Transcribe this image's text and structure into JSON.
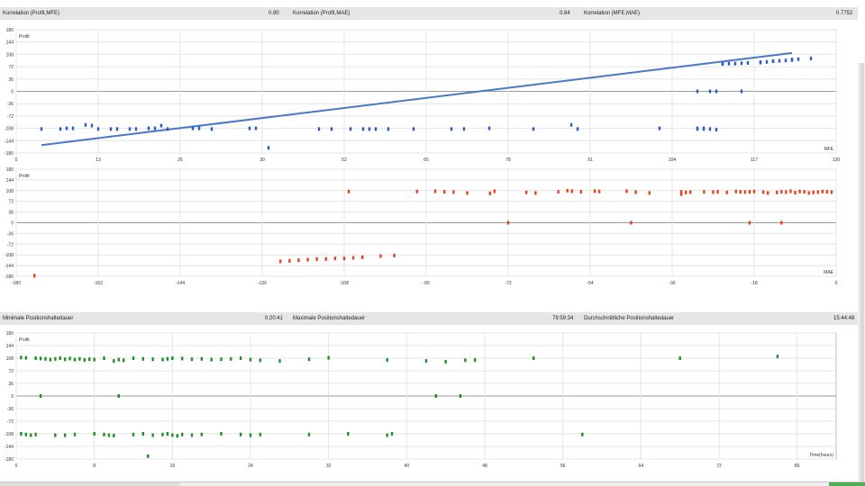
{
  "stats_top": {
    "items": [
      {
        "label": "Korrelation (Profit,MFE)",
        "value": "0.90"
      },
      {
        "label": "Korrelation (Profit,MAE)",
        "value": "0.84"
      },
      {
        "label": "Korrelation (MFE,MAE)",
        "value": "0.7752"
      }
    ]
  },
  "stats_mid": {
    "items": [
      {
        "label": "Minimale Positionshaltedauer",
        "value": "0:20:41"
      },
      {
        "label": "Maximale Positionshaltedauer",
        "value": "79:59:34"
      },
      {
        "label": "Durchschnittliche Positionshaltedauer",
        "value": "15:44:48"
      }
    ]
  },
  "chart_data": [
    {
      "type": "scatter",
      "title": "",
      "xlabel": "MFE",
      "ylabel": "Profit",
      "xlim": [
        0,
        130
      ],
      "ylim": [
        -180,
        180
      ],
      "xticks": [
        0,
        13,
        26,
        39,
        52,
        65,
        78,
        91,
        104,
        117,
        130
      ],
      "yticks": [
        -180,
        -144,
        -108,
        -72,
        -36,
        0,
        36,
        72,
        108,
        144,
        180
      ],
      "grid": true,
      "trendline": {
        "x": [
          4,
          123
        ],
        "y": [
          -157,
          112
        ]
      },
      "series": [
        {
          "color": "#2a5cc8",
          "x": [
            4,
            7,
            8,
            9,
            11,
            12,
            13,
            15,
            16,
            18,
            19,
            21,
            22,
            23,
            24,
            28,
            29,
            31,
            37,
            38,
            40,
            48,
            50,
            53,
            55,
            56,
            57,
            59,
            63,
            69,
            71,
            75,
            82,
            88,
            89,
            102,
            108,
            108,
            109,
            109,
            110,
            111,
            112,
            112,
            113,
            114,
            115,
            116,
            118,
            118,
            119,
            120,
            120,
            121,
            122,
            123,
            123,
            124,
            108,
            110,
            111,
            115,
            126
          ],
          "y": [
            -110,
            -110,
            -108,
            -108,
            -98,
            -100,
            -110,
            -110,
            -110,
            -110,
            -110,
            -108,
            -108,
            -100,
            -110,
            -108,
            -108,
            -110,
            -108,
            -108,
            -165,
            -110,
            -110,
            -110,
            -110,
            -110,
            -110,
            -110,
            -110,
            -110,
            -110,
            -108,
            -110,
            -98,
            -110,
            -108,
            -108,
            -110,
            -110,
            -108,
            -110,
            -112,
            80,
            81,
            81,
            81,
            82,
            83,
            84,
            85,
            86,
            88,
            88,
            89,
            90,
            91,
            93,
            94,
            0,
            0,
            0,
            0,
            96
          ]
        }
      ]
    },
    {
      "type": "scatter",
      "title": "",
      "xlabel": "MAE",
      "ylabel": "Profit",
      "xlim": [
        -180,
        0
      ],
      "ylim": [
        -180,
        180
      ],
      "xticks": [
        -180,
        -162,
        -144,
        -126,
        -108,
        -90,
        -72,
        -54,
        -36,
        -18,
        0
      ],
      "yticks": [
        -180,
        -144,
        -108,
        -72,
        -36,
        0,
        36,
        72,
        108,
        144,
        180
      ],
      "grid": true,
      "series": [
        {
          "color": "#e8401c",
          "x": [
            -176,
            -107,
            -92,
            -88,
            -86,
            -84,
            -81,
            -76,
            -75,
            -68,
            -66,
            -61,
            -59,
            -58,
            -56,
            -53,
            -52,
            -46,
            -44,
            -41,
            -34,
            -34,
            -33,
            -32,
            -29,
            -27,
            -26,
            -24,
            -22,
            -21,
            -20,
            -19,
            -18,
            -16,
            -15,
            -13,
            -12,
            -11,
            -10,
            -9,
            -8,
            -7,
            -6,
            -5,
            -4,
            -3,
            -2,
            -1,
            -122,
            -120,
            -118,
            -116,
            -114,
            -112,
            -110,
            -108,
            -106,
            -104,
            -100,
            -97,
            -72,
            -45,
            -19,
            -12
          ],
          "y": [
            -178,
            105,
            105,
            106,
            104,
            103,
            100,
            99,
            106,
            102,
            100,
            104,
            108,
            106,
            104,
            106,
            105,
            106,
            103,
            100,
            104,
            96,
            102,
            103,
            104,
            103,
            104,
            102,
            105,
            104,
            103,
            104,
            105,
            103,
            100,
            102,
            104,
            103,
            106,
            101,
            105,
            104,
            100,
            102,
            103,
            105,
            104,
            103,
            -130,
            -128,
            -126,
            -124,
            -122,
            -122,
            -120,
            -120,
            -118,
            -116,
            -112,
            -110,
            0,
            0,
            0,
            0
          ]
        }
      ]
    },
    {
      "type": "scatter",
      "title": "",
      "xlabel": "Time(hours)",
      "ylabel": "Profit",
      "xlim": [
        0,
        84
      ],
      "ylim": [
        -180,
        180
      ],
      "xticks": [
        0,
        8,
        16,
        24,
        32,
        40,
        48,
        56,
        64,
        72,
        80
      ],
      "yticks": [
        -180,
        -144,
        -108,
        -72,
        -36,
        0,
        36,
        72,
        108,
        144,
        180
      ],
      "grid": true,
      "series": [
        {
          "color": "#1f8f2a",
          "x": [
            0.5,
            1,
            2,
            2.5,
            3,
            3.5,
            4,
            4.5,
            5,
            5.5,
            6,
            6.5,
            7,
            7.5,
            8,
            9,
            10,
            10.5,
            11,
            12,
            13,
            14,
            15,
            15.5,
            16,
            17,
            18,
            19,
            20,
            21,
            22,
            23,
            24,
            25,
            27,
            30,
            32,
            38,
            42,
            44,
            46,
            47,
            53,
            68,
            78,
            0.5,
            1,
            1.5,
            2,
            4,
            5,
            6,
            8,
            9,
            9.5,
            10,
            12,
            13,
            14,
            15,
            15.5,
            16,
            16.5,
            17,
            18,
            19,
            21,
            23,
            24,
            25,
            30,
            34,
            38,
            38.5,
            58,
            2.5,
            10.5,
            43,
            45.5,
            13.5
          ],
          "y": [
            110,
            109,
            108,
            107,
            106,
            104,
            106,
            108,
            105,
            107,
            104,
            106,
            103,
            105,
            104,
            108,
            100,
            104,
            102,
            108,
            106,
            105,
            104,
            106,
            108,
            107,
            105,
            106,
            104,
            105,
            106,
            108,
            104,
            102,
            100,
            105,
            109,
            103,
            100,
            98,
            102,
            103,
            108,
            108,
            113,
            -108,
            -110,
            -112,
            -110,
            -112,
            -112,
            -110,
            -108,
            -110,
            -112,
            -113,
            -110,
            -108,
            -112,
            -110,
            -108,
            -112,
            -114,
            -110,
            -112,
            -110,
            -108,
            -110,
            -112,
            -110,
            -110,
            -108,
            -112,
            -108,
            -110,
            0,
            0,
            0,
            0,
            -172
          ]
        }
      ]
    }
  ]
}
